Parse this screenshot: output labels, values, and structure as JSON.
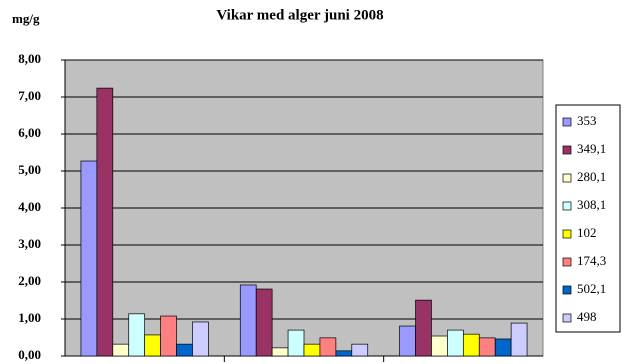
{
  "chart_data": {
    "type": "bar",
    "title": "Vikar med alger juni 2008",
    "y_label": "mg/g",
    "categories": [
      null,
      null,
      null
    ],
    "series": [
      {
        "name": "353",
        "color": "#9999ff",
        "values": [
          5.27,
          1.92,
          0.81
        ]
      },
      {
        "name": "349,1",
        "color": "#993366",
        "values": [
          7.24,
          1.81,
          1.51
        ]
      },
      {
        "name": "280,1",
        "color": "#ffffcc",
        "values": [
          0.32,
          0.22,
          0.54
        ]
      },
      {
        "name": "308,1",
        "color": "#ccffff",
        "values": [
          1.14,
          0.7,
          0.7
        ]
      },
      {
        "name": "102",
        "color": "#ffff00",
        "values": [
          0.57,
          0.32,
          0.59
        ]
      },
      {
        "name": "174,3",
        "color": "#ff8080",
        "values": [
          1.08,
          0.49,
          0.49
        ]
      },
      {
        "name": "502,1",
        "color": "#0066cc",
        "values": [
          0.32,
          0.14,
          0.46
        ]
      },
      {
        "name": "498",
        "color": "#ccccff",
        "values": [
          0.92,
          0.32,
          0.89
        ]
      }
    ],
    "ylim": [
      0,
      8
    ],
    "yticks": [
      {
        "value": 0,
        "label": "0,00"
      },
      {
        "value": 1,
        "label": "1,00"
      },
      {
        "value": 2,
        "label": "2,00"
      },
      {
        "value": 3,
        "label": "3,00"
      },
      {
        "value": 4,
        "label": "4,00"
      },
      {
        "value": 5,
        "label": "5,00"
      },
      {
        "value": 6,
        "label": "6,00"
      },
      {
        "value": 7,
        "label": "7,00"
      },
      {
        "value": 8,
        "label": "8,00"
      }
    ],
    "grid": true,
    "plot_background": "#c0c0c0",
    "legend": "right"
  }
}
